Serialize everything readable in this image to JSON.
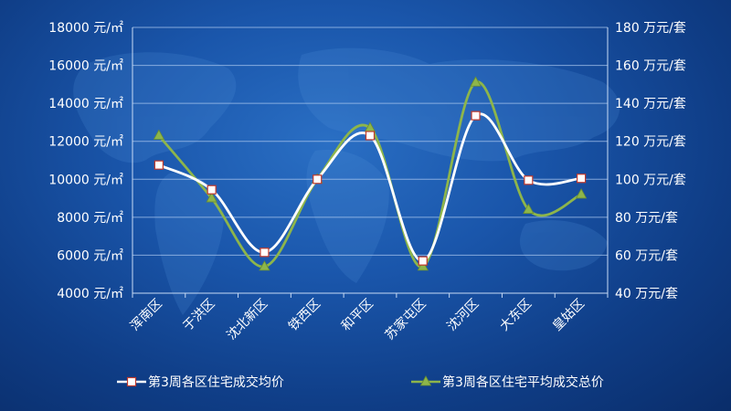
{
  "chart_data": {
    "type": "line",
    "categories": [
      "浑南区",
      "于洪区",
      "沈北新区",
      "铁西区",
      "和平区",
      "苏家屯区",
      "沈河区",
      "大东区",
      "皇姑区"
    ],
    "series": [
      {
        "name": "第3周各区住宅成交均价",
        "axis": "left",
        "values": [
          10750,
          9450,
          6150,
          10000,
          12300,
          5700,
          13350,
          9950,
          10050
        ],
        "color": "#ffffff",
        "marker": "square"
      },
      {
        "name": "第3周各区住宅平均成交总价",
        "axis": "right",
        "values": [
          123,
          90,
          54,
          100,
          127,
          54,
          151,
          84,
          92
        ],
        "color": "#8db54b",
        "marker": "triangle"
      }
    ],
    "y_left": {
      "range": [
        4000,
        18000
      ],
      "ticks": [
        {
          "value": 4000,
          "label": "4000 元/㎡"
        },
        {
          "value": 6000,
          "label": "6000 元/㎡"
        },
        {
          "value": 8000,
          "label": "8000 元/㎡"
        },
        {
          "value": 10000,
          "label": "10000 元/㎡"
        },
        {
          "value": 12000,
          "label": "12000 元/㎡"
        },
        {
          "value": 14000,
          "label": "14000 元/㎡"
        },
        {
          "value": 16000,
          "label": "16000 元/㎡"
        },
        {
          "value": 18000,
          "label": "18000 元/㎡"
        }
      ]
    },
    "y_right": {
      "range": [
        40,
        180
      ],
      "ticks": [
        {
          "value": 40,
          "label": "40 万元/套"
        },
        {
          "value": 60,
          "label": "60 万元/套"
        },
        {
          "value": 80,
          "label": "80 万元/套"
        },
        {
          "value": 100,
          "label": "100 万元/套"
        },
        {
          "value": 120,
          "label": "120 万元/套"
        },
        {
          "value": 140,
          "label": "140 万元/套"
        },
        {
          "value": 160,
          "label": "160 万元/套"
        },
        {
          "value": 180,
          "label": "180 万元/套"
        }
      ]
    },
    "grid": true,
    "legend": "bottom",
    "smooth": true
  }
}
